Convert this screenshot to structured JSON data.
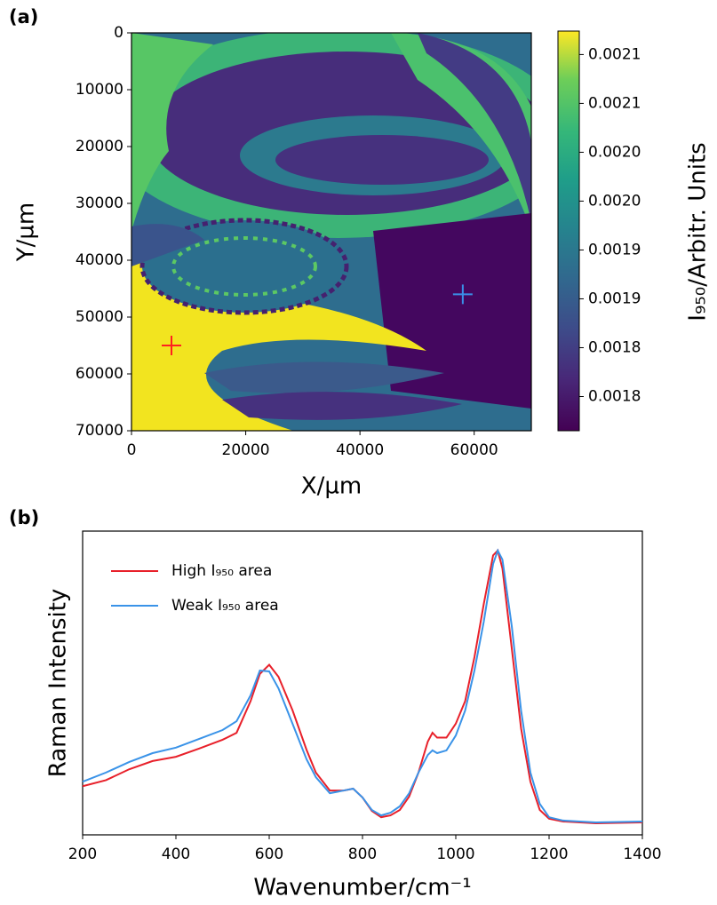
{
  "chart_data": [
    {
      "type": "heatmap",
      "panel_label": "(a)",
      "xlabel": "X/µm",
      "ylabel": "Y/µm",
      "xlim": [
        0,
        70000
      ],
      "xticks": [
        0,
        20000,
        40000,
        60000
      ],
      "ylim": [
        70000,
        0
      ],
      "yticks": [
        0,
        10000,
        20000,
        30000,
        40000,
        50000,
        60000,
        70000
      ],
      "colormap": "viridis",
      "colorbar": {
        "label": "I₉₅₀/Arbitr. Units",
        "lim": [
          0.001715,
          0.002124
        ],
        "ticks": [
          {
            "value": 0.00175,
            "label": "0.0018"
          },
          {
            "value": 0.0018,
            "label": "0.0018"
          },
          {
            "value": 0.00185,
            "label": "0.0019"
          },
          {
            "value": 0.0019,
            "label": "0.0019"
          },
          {
            "value": 0.00195,
            "label": "0.0020"
          },
          {
            "value": 0.002,
            "label": "0.0020"
          },
          {
            "value": 0.00205,
            "label": "0.0021"
          },
          {
            "value": 0.0021,
            "label": "0.0021"
          }
        ]
      },
      "markers": [
        {
          "x": 7000,
          "y": 55000,
          "color": "#ff2020"
        },
        {
          "x": 58000,
          "y": 46000,
          "color": "#3a8fe8"
        }
      ]
    },
    {
      "type": "line",
      "panel_label": "(b)",
      "xlabel": "Wavenumber/cm⁻¹",
      "ylabel": "Raman Intensity",
      "xlim": [
        200,
        1400
      ],
      "xticks": [
        200,
        400,
        600,
        800,
        1000,
        1200,
        1400
      ],
      "ylim": [
        0,
        1
      ],
      "legend": "upper left",
      "x": [
        200,
        250,
        300,
        350,
        400,
        450,
        500,
        530,
        560,
        580,
        600,
        620,
        650,
        680,
        700,
        730,
        760,
        780,
        800,
        820,
        840,
        860,
        880,
        900,
        920,
        940,
        950,
        960,
        980,
        1000,
        1020,
        1040,
        1060,
        1080,
        1090,
        1100,
        1120,
        1140,
        1160,
        1180,
        1200,
        1230,
        1300,
        1400
      ],
      "series": [
        {
          "name": "High I₉₅₀ area",
          "color": "#e8202a",
          "values": [
            0.16,
            0.18,
            0.216,
            0.243,
            0.257,
            0.284,
            0.313,
            0.336,
            0.44,
            0.53,
            0.56,
            0.52,
            0.41,
            0.28,
            0.205,
            0.146,
            0.146,
            0.152,
            0.123,
            0.079,
            0.058,
            0.064,
            0.082,
            0.126,
            0.205,
            0.307,
            0.336,
            0.32,
            0.32,
            0.366,
            0.44,
            0.585,
            0.76,
            0.92,
            0.936,
            0.877,
            0.614,
            0.35,
            0.175,
            0.082,
            0.053,
            0.044,
            0.038,
            0.041
          ]
        },
        {
          "name": "Weak I₉₅₀ area",
          "color": "#3a93e8",
          "values": [
            0.175,
            0.205,
            0.24,
            0.269,
            0.287,
            0.316,
            0.345,
            0.374,
            0.459,
            0.541,
            0.538,
            0.482,
            0.366,
            0.249,
            0.19,
            0.137,
            0.146,
            0.152,
            0.123,
            0.082,
            0.064,
            0.073,
            0.094,
            0.137,
            0.205,
            0.263,
            0.278,
            0.269,
            0.278,
            0.327,
            0.409,
            0.541,
            0.702,
            0.892,
            0.936,
            0.906,
            0.687,
            0.409,
            0.205,
            0.102,
            0.058,
            0.047,
            0.041,
            0.044
          ]
        }
      ]
    }
  ]
}
